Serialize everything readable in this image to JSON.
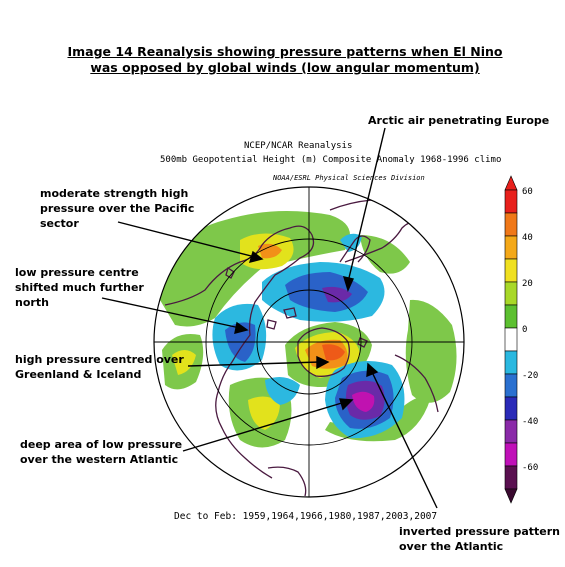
{
  "title": {
    "line1": "Image 14 Reanalysis showing pressure patterns when El Nino",
    "line2": "was opposed by global winds (low angular momentum)"
  },
  "map_header": {
    "line1": "NCEP/NCAR Reanalysis",
    "line2": "500mb Geopotential Height (m) Composite Anomaly 1968-1996 climo",
    "line3": "NOAA/ESRL Physical Sciences Division"
  },
  "footer": "Dec to Feb: 1959,1964,1966,1980,1987,2003,2007",
  "annotations": {
    "arctic": "Arctic air penetrating Europe",
    "pacific_high": [
      "moderate strength high",
      "pressure over the Pacific",
      "sector"
    ],
    "low_north": [
      "low pressure centre",
      "shifted much further",
      "north"
    ],
    "greenland_high": [
      "high pressure centred over",
      "Greenland & Iceland"
    ],
    "atlantic_low": [
      "deep area of low pressure",
      "over the western Atlantic"
    ],
    "inverted": [
      "inverted pressure pattern",
      "over the Atlantic"
    ]
  },
  "colorbar": {
    "tick_labels": [
      "60",
      "40",
      "20",
      "0",
      "-20",
      "-40",
      "-60"
    ],
    "colors": [
      "#e8201c",
      "#f07818",
      "#f4a818",
      "#f0e020",
      "#a8d828",
      "#5cc030",
      "#ffffff",
      "#2ab8e0",
      "#2a70d0",
      "#2a2ab8",
      "#8a2aa8",
      "#c010b8",
      "#5a1050"
    ]
  },
  "anomaly_colors": {
    "positive_weak": "#7ec84a",
    "positive_mid": "#e2e21c",
    "positive_strong": "#f29018",
    "positive_max": "#ee5a18",
    "negative_weak": "#2cb8e0",
    "negative_mid": "#2a62c8",
    "negative_strong": "#6a2aa8",
    "negative_max": "#c012b0"
  }
}
